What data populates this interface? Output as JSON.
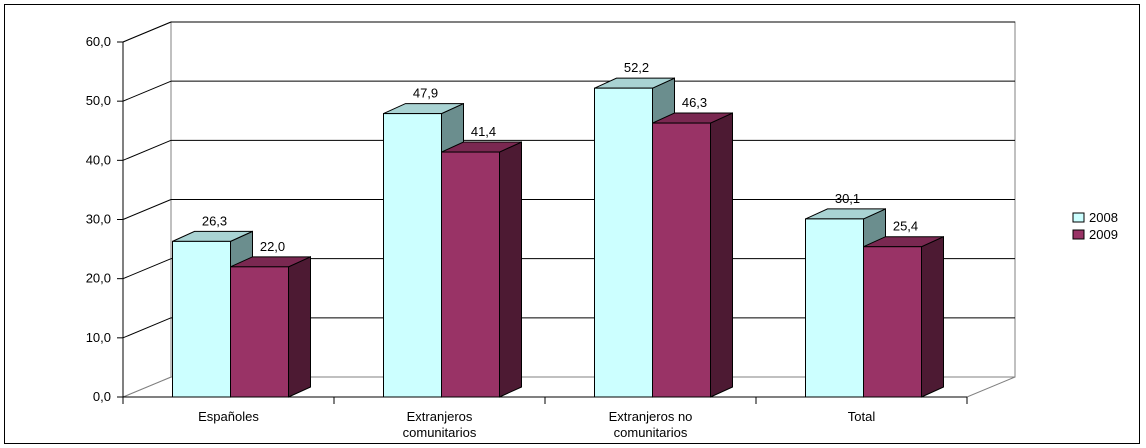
{
  "chart_data": {
    "type": "bar",
    "title": "",
    "xlabel": "",
    "ylabel": "",
    "categories": [
      [
        "Españoles"
      ],
      [
        "Extranjeros",
        "comunitarios"
      ],
      [
        "Extranjeros no",
        "comunitarios"
      ],
      [
        "Total"
      ]
    ],
    "series": [
      {
        "name": "2008",
        "values": [
          26.3,
          47.9,
          52.2,
          30.1
        ],
        "labels": [
          "26,3",
          "47,9",
          "52,2",
          "30,1"
        ],
        "color": "#ccffff",
        "top_color": "#a9d3d3",
        "side_color": "#6b8e8e"
      },
      {
        "name": "2009",
        "values": [
          22.0,
          41.4,
          46.3,
          25.4
        ],
        "labels": [
          "22,0",
          "41,4",
          "46,3",
          "25,4"
        ],
        "color": "#993366",
        "top_color": "#7a2851",
        "side_color": "#4d1a33"
      }
    ],
    "ylim": [
      0,
      60
    ],
    "yticks": [
      0,
      10,
      20,
      30,
      40,
      50,
      60
    ],
    "ytick_labels": [
      "0,0",
      "10,0",
      "20,0",
      "30,0",
      "40,0",
      "50,0",
      "60,0"
    ],
    "grid": true,
    "three_d": true,
    "legend": "right"
  }
}
